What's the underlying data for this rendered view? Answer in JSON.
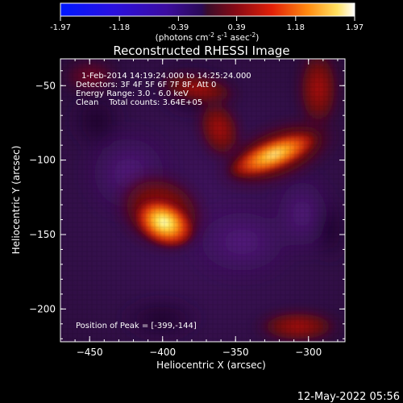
{
  "colorbar": {
    "ticks": [
      "-1.97",
      "-1.18",
      "-0.39",
      "0.39",
      "1.18",
      "1.97"
    ],
    "tick_values": [
      -1.97,
      -1.18,
      -0.39,
      0.39,
      1.18,
      1.97
    ],
    "range": [
      -1.97,
      1.97
    ],
    "unit_label": "(photons cm",
    "unit_exp1": "-2",
    "unit_mid": " s",
    "unit_exp2": "-1",
    "unit_end": " asec",
    "unit_exp3": "-2",
    "unit_close": ")"
  },
  "chart_data": {
    "type": "heatmap",
    "title": "Reconstructed RHESSI Image",
    "xlabel": "Heliocentric X (arcsec)",
    "ylabel": "Heliocentric Y (arcsec)",
    "xlim": [
      -470,
      -275
    ],
    "ylim": [
      -222,
      -32
    ],
    "x_ticks": [
      -450,
      -400,
      -350,
      -300
    ],
    "y_ticks": [
      -50,
      -100,
      -150,
      -200
    ],
    "x_tick_labels": [
      "−450",
      "−400",
      "−350",
      "−300"
    ],
    "y_tick_labels": [
      "−50",
      "−100",
      "−150",
      "−200"
    ],
    "grid": false,
    "colormap": "rhessi-heat",
    "annotations": [
      "1-Feb-2014 14:19:24.000 to 14:25:24.000",
      "Detectors: 3F 4F 5F 6F 7F 8F, Att 0",
      "Energy Range: 3.0 - 6.0 keV",
      "Clean    Total counts: 3.64E+05"
    ],
    "peak_label": "Position of Peak = [-399,-144]",
    "peak_position": [
      -399,
      -144
    ],
    "sources": [
      {
        "x": -399,
        "y": -144,
        "intensity": 1.0
      },
      {
        "x": -318,
        "y": -93,
        "intensity": 0.8
      }
    ]
  },
  "footer": {
    "timestamp": "12-May-2022 05:56"
  }
}
